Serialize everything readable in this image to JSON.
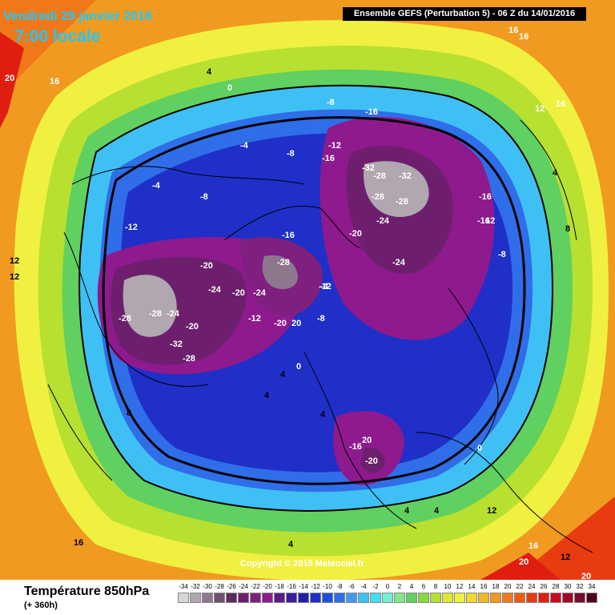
{
  "header": {
    "date": "Vendredi 29 janvier 2016",
    "time": "7:00 locale",
    "run": "Ensemble GEFS  (Perturbation 5)  -  06 Z du 14/01/2016"
  },
  "copyright": "Copyright © 2015 Meteociel.fr",
  "legend": {
    "title": "Température 850hPa",
    "subtitle": "(+ 360h)",
    "scale": [
      {
        "label": "-34",
        "color": "#d6d6d6"
      },
      {
        "label": "-32",
        "color": "#b0a7b0"
      },
      {
        "label": "-30",
        "color": "#8d778d"
      },
      {
        "label": "-28",
        "color": "#6e4f6e"
      },
      {
        "label": "-26",
        "color": "#5a2a5a"
      },
      {
        "label": "-24",
        "color": "#6d1f6d"
      },
      {
        "label": "-22",
        "color": "#7f1f7f"
      },
      {
        "label": "-20",
        "color": "#8e1a8e"
      },
      {
        "label": "-18",
        "color": "#5a1a8c"
      },
      {
        "label": "-16",
        "color": "#3a1e9a"
      },
      {
        "label": "-14",
        "color": "#1e1eaa"
      },
      {
        "label": "-12",
        "color": "#1f2fc8"
      },
      {
        "label": "-10",
        "color": "#1f4fdc"
      },
      {
        "label": "-8",
        "color": "#2f6ee8"
      },
      {
        "label": "-6",
        "color": "#3f9af0"
      },
      {
        "label": "-4",
        "color": "#3fc0f5"
      },
      {
        "label": "-2",
        "color": "#3fe0f0"
      },
      {
        "label": "0",
        "color": "#6ff0d0"
      },
      {
        "label": "2",
        "color": "#7fe88a"
      },
      {
        "label": "4",
        "color": "#60d060"
      },
      {
        "label": "6",
        "color": "#8ad840"
      },
      {
        "label": "8",
        "color": "#b8e030"
      },
      {
        "label": "10",
        "color": "#e0e830"
      },
      {
        "label": "12",
        "color": "#f0f040"
      },
      {
        "label": "14",
        "color": "#f0d830"
      },
      {
        "label": "16",
        "color": "#f0b828"
      },
      {
        "label": "18",
        "color": "#f09a20"
      },
      {
        "label": "20",
        "color": "#f07818"
      },
      {
        "label": "22",
        "color": "#f05a10"
      },
      {
        "label": "24",
        "color": "#e83c10"
      },
      {
        "label": "26",
        "color": "#e01e10"
      },
      {
        "label": "28",
        "color": "#c80a1e"
      },
      {
        "label": "30",
        "color": "#a00a28"
      },
      {
        "label": "32",
        "color": "#780a30"
      },
      {
        "label": "34",
        "color": "#50001e"
      }
    ]
  },
  "map": {
    "isotherm_labels": [
      {
        "text": "16",
        "dark": false
      },
      {
        "text": "16",
        "dark": false
      },
      {
        "text": "20",
        "dark": false
      },
      {
        "text": "16",
        "dark": false
      },
      {
        "text": "4",
        "dark": true
      },
      {
        "text": "0",
        "dark": false
      },
      {
        "text": "-8",
        "dark": false
      },
      {
        "text": "-16",
        "dark": false
      },
      {
        "text": "12",
        "dark": false
      },
      {
        "text": "16",
        "dark": false
      },
      {
        "text": "-4",
        "dark": false
      },
      {
        "text": "-8",
        "dark": false
      },
      {
        "text": "-12",
        "dark": false
      },
      {
        "text": "-16",
        "dark": false
      },
      {
        "text": "-32",
        "dark": false
      },
      {
        "text": "-28",
        "dark": false
      },
      {
        "text": "-32",
        "dark": false
      },
      {
        "text": "-28",
        "dark": false
      },
      {
        "text": "-28",
        "dark": false
      },
      {
        "text": "-16",
        "dark": false
      },
      {
        "text": "8",
        "dark": true
      },
      {
        "text": "-4",
        "dark": false
      },
      {
        "text": "-8",
        "dark": false
      },
      {
        "text": "-12",
        "dark": false
      },
      {
        "text": "-16",
        "dark": false
      },
      {
        "text": "-20",
        "dark": false
      },
      {
        "text": "-24",
        "dark": false
      },
      {
        "text": "-28",
        "dark": false
      },
      {
        "text": "-20",
        "dark": false
      },
      {
        "text": "-28",
        "dark": false
      },
      {
        "text": "-24",
        "dark": false
      },
      {
        "text": "-20",
        "dark": false
      },
      {
        "text": "-24",
        "dark": false
      },
      {
        "text": "-28",
        "dark": false
      },
      {
        "text": "-24",
        "dark": false
      },
      {
        "text": "-20",
        "dark": false
      },
      {
        "text": "-32",
        "dark": false
      },
      {
        "text": "-28",
        "dark": false
      },
      {
        "text": "-12",
        "dark": false
      },
      {
        "text": "-8",
        "dark": false
      },
      {
        "text": "-20",
        "dark": false
      },
      {
        "text": "20",
        "dark": false
      },
      {
        "text": "-16",
        "dark": false
      },
      {
        "text": "12",
        "dark": false
      },
      {
        "text": "-8",
        "dark": false
      },
      {
        "text": "4",
        "dark": true
      },
      {
        "text": "12",
        "dark": true
      },
      {
        "text": "12",
        "dark": true
      },
      {
        "text": "4",
        "dark": true
      },
      {
        "text": "0",
        "dark": false
      },
      {
        "text": "4",
        "dark": true
      },
      {
        "text": "8",
        "dark": true
      },
      {
        "text": "4",
        "dark": true
      },
      {
        "text": "-16",
        "dark": false
      },
      {
        "text": "20",
        "dark": false
      },
      {
        "text": "-20",
        "dark": false
      },
      {
        "text": "4",
        "dark": true
      },
      {
        "text": "4",
        "dark": true
      },
      {
        "text": "12",
        "dark": true
      },
      {
        "text": "16",
        "dark": true
      },
      {
        "text": "16",
        "dark": false
      },
      {
        "text": "20",
        "dark": false
      },
      {
        "text": "12",
        "dark": true
      },
      {
        "text": "20",
        "dark": false
      },
      {
        "text": "-4",
        "dark": false
      },
      {
        "text": "-12",
        "dark": false
      },
      {
        "text": "-24",
        "dark": false
      },
      {
        "text": "0",
        "dark": false
      },
      {
        "text": "4",
        "dark": true
      }
    ]
  }
}
